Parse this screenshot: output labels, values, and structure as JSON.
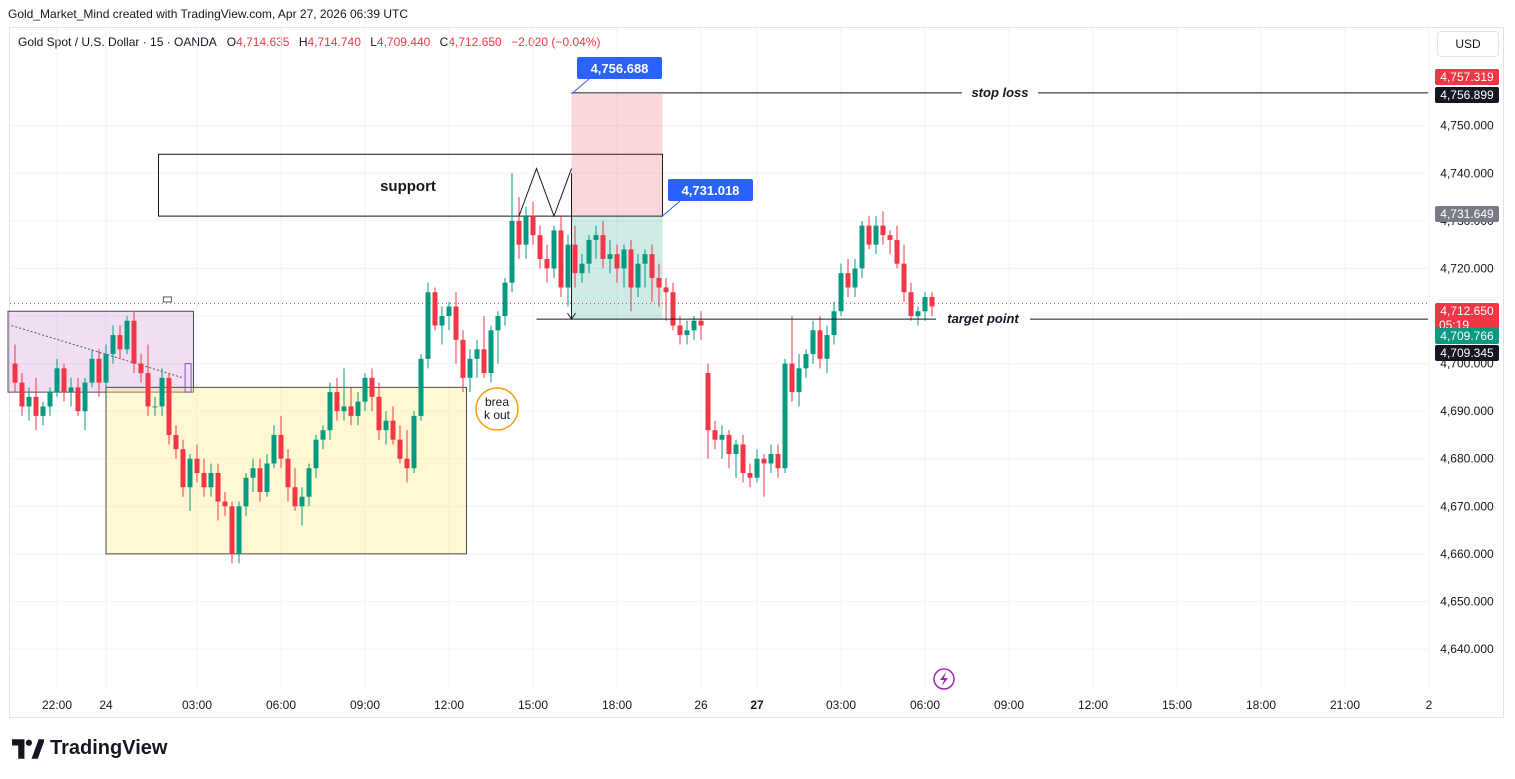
{
  "credit": "Gold_Market_Mind created with TradingView.com, Apr 27, 2026 06:39 UTC",
  "legend": {
    "symbol": "Gold Spot / U.S. Dollar · 15 · OANDA",
    "o_label": "O",
    "o": "4,714.635",
    "h_label": "H",
    "h": "4,714.740",
    "l_label": "L",
    "l": "4,709.440",
    "c_label": "C",
    "c": "4,712.650",
    "change": "−2.020 (−0.04%)"
  },
  "currency": "USD",
  "brand": "TradingView",
  "colors": {
    "up": "#089981",
    "down": "#f23645",
    "accent": "#2962ff"
  },
  "icons": [
    "tradingview-logo-icon",
    "lightning-icon"
  ],
  "chart_data": {
    "type": "candlestick",
    "title": "Gold Spot / U.S. Dollar · 15 · OANDA",
    "ylim": [
      4632,
      4764
    ],
    "y_ticks": [
      4640,
      4650,
      4660,
      4670,
      4680,
      4690,
      4700,
      4710,
      4720,
      4730,
      4740,
      4750
    ],
    "y_tick_labels": [
      "4,640.000",
      "4,650.000",
      "4,660.000",
      "4,670.000",
      "4,680.000",
      "4,690.000",
      "4,700.000",
      "4,710.000",
      "4,720.000",
      "4,730.000",
      "4,740.000",
      "4,750.000"
    ],
    "x_ticks": [
      {
        "bar": 6,
        "label": "22:00",
        "bold": false
      },
      {
        "bar": 13,
        "label": "24",
        "bold": false
      },
      {
        "bar": 26,
        "label": "03:00",
        "bold": false
      },
      {
        "bar": 38,
        "label": "06:00",
        "bold": false
      },
      {
        "bar": 50,
        "label": "09:00",
        "bold": false
      },
      {
        "bar": 62,
        "label": "12:00",
        "bold": false
      },
      {
        "bar": 74,
        "label": "15:00",
        "bold": false
      },
      {
        "bar": 86,
        "label": "18:00",
        "bold": false
      },
      {
        "bar": 98,
        "label": "26",
        "bold": false
      },
      {
        "bar": 106,
        "label": "27",
        "bold": true
      },
      {
        "bar": 118,
        "label": "03:00",
        "bold": false
      },
      {
        "bar": 130,
        "label": "06:00",
        "bold": false
      },
      {
        "bar": 142,
        "label": "09:00",
        "bold": false
      },
      {
        "bar": 154,
        "label": "12:00",
        "bold": false
      },
      {
        "bar": 166,
        "label": "15:00",
        "bold": false
      },
      {
        "bar": 178,
        "label": "18:00",
        "bold": false
      },
      {
        "bar": 190,
        "label": "21:00",
        "bold": false
      },
      {
        "bar": 202,
        "label": "2",
        "bold": false
      }
    ],
    "candles": [
      [
        4700,
        4704,
        4694,
        4696
      ],
      [
        4696,
        4698,
        4689,
        4691
      ],
      [
        4691,
        4695,
        4688,
        4693
      ],
      [
        4693,
        4697,
        4686,
        4689
      ],
      [
        4689,
        4692,
        4687,
        4691
      ],
      [
        4691,
        4695,
        4689,
        4694
      ],
      [
        4694,
        4701,
        4693,
        4699
      ],
      [
        4699,
        4700,
        4692,
        4694
      ],
      [
        4694,
        4697,
        4691,
        4695
      ],
      [
        4695,
        4697,
        4689,
        4690
      ],
      [
        4690,
        4697,
        4686,
        4696
      ],
      [
        4696,
        4703,
        4695,
        4701
      ],
      [
        4701,
        4703,
        4693,
        4696
      ],
      [
        4696,
        4704,
        4695,
        4702
      ],
      [
        4702,
        4708,
        4700,
        4706
      ],
      [
        4706,
        4708,
        4701,
        4703
      ],
      [
        4703,
        4710,
        4702,
        4709
      ],
      [
        4709,
        4711,
        4698,
        4700
      ],
      [
        4700,
        4702,
        4696,
        4698
      ],
      [
        4698,
        4704,
        4689,
        4691
      ],
      [
        4691,
        4693,
        4689,
        4691
      ],
      [
        4691,
        4699,
        4689,
        4697
      ],
      [
        4697,
        4698,
        4683,
        4685
      ],
      [
        4685,
        4687,
        4680,
        4682
      ],
      [
        4682,
        4684,
        4672,
        4674
      ],
      [
        4674,
        4681,
        4669,
        4680
      ],
      [
        4680,
        4683,
        4675,
        4677
      ],
      [
        4677,
        4680,
        4672,
        4674
      ],
      [
        4674,
        4679,
        4672,
        4677
      ],
      [
        4677,
        4679,
        4667,
        4671
      ],
      [
        4671,
        4673,
        4668,
        4670
      ],
      [
        4670,
        4671,
        4658,
        4660
      ],
      [
        4660,
        4671,
        4658,
        4670
      ],
      [
        4670,
        4677,
        4668,
        4676
      ],
      [
        4676,
        4680,
        4673,
        4678
      ],
      [
        4678,
        4680,
        4671,
        4673
      ],
      [
        4673,
        4681,
        4672,
        4679
      ],
      [
        4679,
        4687,
        4678,
        4685
      ],
      [
        4685,
        4689,
        4678,
        4680
      ],
      [
        4680,
        4682,
        4671,
        4674
      ],
      [
        4674,
        4678,
        4669,
        4670
      ],
      [
        4670,
        4674,
        4666,
        4672
      ],
      [
        4672,
        4679,
        4670,
        4678
      ],
      [
        4678,
        4685,
        4676,
        4684
      ],
      [
        4684,
        4687,
        4682,
        4686
      ],
      [
        4686,
        4696,
        4684,
        4694
      ],
      [
        4694,
        4697,
        4688,
        4690
      ],
      [
        4690,
        4699,
        4688,
        4691
      ],
      [
        4691,
        4695,
        4687,
        4689
      ],
      [
        4689,
        4694,
        4687,
        4692
      ],
      [
        4692,
        4698,
        4690,
        4697
      ],
      [
        4697,
        4699,
        4690,
        4693
      ],
      [
        4693,
        4696,
        4684,
        4686
      ],
      [
        4686,
        4690,
        4683,
        4688
      ],
      [
        4688,
        4691,
        4683,
        4684
      ],
      [
        4684,
        4687,
        4679,
        4680
      ],
      [
        4680,
        4686,
        4675,
        4678
      ],
      [
        4678,
        4690,
        4677,
        4689
      ],
      [
        4689,
        4702,
        4688,
        4701
      ],
      [
        4701,
        4717,
        4699,
        4715
      ],
      [
        4715,
        4716,
        4707,
        4708
      ],
      [
        4708,
        4712,
        4704,
        4710
      ],
      [
        4710,
        4713,
        4707,
        4712
      ],
      [
        4712,
        4715,
        4700,
        4705
      ],
      [
        4705,
        4707,
        4694,
        4697
      ],
      [
        4697,
        4703,
        4694,
        4701
      ],
      [
        4701,
        4705,
        4697,
        4703
      ],
      [
        4703,
        4710,
        4697,
        4698
      ],
      [
        4698,
        4708,
        4696,
        4707
      ],
      [
        4707,
        4711,
        4700,
        4710
      ],
      [
        4710,
        4718,
        4708,
        4717
      ],
      [
        4717,
        4740,
        4715,
        4730
      ],
      [
        4730,
        4735,
        4722,
        4725
      ],
      [
        4725,
        4733,
        4722,
        4731
      ],
      [
        4731,
        4734,
        4725,
        4727
      ],
      [
        4727,
        4729,
        4720,
        4722
      ],
      [
        4722,
        4725,
        4717,
        4720
      ],
      [
        4720,
        4729,
        4718,
        4728
      ],
      [
        4728,
        4731,
        4714,
        4716
      ],
      [
        4716,
        4727,
        4712,
        4725
      ],
      [
        4725,
        4729,
        4716,
        4719
      ],
      [
        4719,
        4723,
        4717,
        4721
      ],
      [
        4721,
        4727,
        4719,
        4726
      ],
      [
        4726,
        4729,
        4722,
        4727
      ],
      [
        4727,
        4730,
        4720,
        4722
      ],
      [
        4722,
        4726,
        4719,
        4723
      ],
      [
        4723,
        4725,
        4717,
        4720
      ],
      [
        4720,
        4725,
        4716,
        4724
      ],
      [
        4724,
        4726,
        4711,
        4716
      ],
      [
        4716,
        4723,
        4714,
        4721
      ],
      [
        4721,
        4724,
        4716,
        4723
      ],
      [
        4723,
        4725,
        4713,
        4718
      ],
      [
        4718,
        4721,
        4712,
        4716
      ],
      [
        4716,
        4718,
        4709,
        4715
      ],
      [
        4715,
        4717,
        4707,
        4708
      ],
      [
        4708,
        4710,
        4704,
        4706
      ],
      [
        4706,
        4709,
        4704,
        4707
      ],
      [
        4707,
        4710,
        4705,
        4709
      ],
      [
        4709,
        4711,
        4705,
        4708
      ],
      [
        4698,
        4700,
        4680,
        4686
      ],
      [
        4686,
        4688,
        4682,
        4684
      ],
      [
        4684,
        4687,
        4680,
        4685
      ],
      [
        4685,
        4686,
        4678,
        4681
      ],
      [
        4681,
        4684,
        4676,
        4683
      ],
      [
        4683,
        4685,
        4675,
        4677
      ],
      [
        4677,
        4679,
        4674,
        4676
      ],
      [
        4676,
        4682,
        4675,
        4680
      ],
      [
        4680,
        4681,
        4672,
        4679
      ],
      [
        4679,
        4683,
        4677,
        4681
      ],
      [
        4681,
        4683,
        4676,
        4678
      ],
      [
        4678,
        4701,
        4677,
        4700
      ],
      [
        4700,
        4710,
        4692,
        4694
      ],
      [
        4694,
        4702,
        4691,
        4699
      ],
      [
        4699,
        4703,
        4697,
        4702
      ],
      [
        4702,
        4709,
        4700,
        4707
      ],
      [
        4707,
        4710,
        4699,
        4701
      ],
      [
        4701,
        4708,
        4698,
        4706
      ],
      [
        4706,
        4713,
        4704,
        4711
      ],
      [
        4711,
        4721,
        4710,
        4719
      ],
      [
        4719,
        4722,
        4714,
        4716
      ],
      [
        4716,
        4722,
        4714,
        4720
      ],
      [
        4720,
        4730,
        4718,
        4729
      ],
      [
        4729,
        4731,
        4724,
        4725
      ],
      [
        4725,
        4731,
        4723,
        4729
      ],
      [
        4729,
        4732,
        4725,
        4727
      ],
      [
        4727,
        4728,
        4723,
        4726
      ],
      [
        4726,
        4729,
        4720,
        4721
      ],
      [
        4721,
        4725,
        4713,
        4715
      ],
      [
        4715,
        4717,
        4709,
        4710
      ],
      [
        4710,
        4712,
        4708,
        4711
      ],
      [
        4711,
        4715,
        4709,
        4714
      ],
      [
        4714,
        4715,
        4710,
        4712
      ]
    ],
    "last_price_line": 4712.65,
    "boxes": [
      {
        "name": "purple-zone",
        "bar_from": -1,
        "bar_to": 25.5,
        "y_from": 4694,
        "y_to": 4711
      },
      {
        "name": "yellow-zone",
        "bar_from": 13,
        "bar_to": 64.5,
        "y_from": 4660,
        "y_to": 4695
      },
      {
        "name": "support-box",
        "bar_from": 20.5,
        "bar_to": 92.5,
        "y_from": 4731,
        "y_to": 4744
      },
      {
        "name": "stop-zone",
        "bar_from": 79.5,
        "bar_to": 92.5,
        "y_from": 4731.018,
        "y_to": 4756.688
      },
      {
        "name": "target-zone",
        "bar_from": 79.5,
        "bar_to": 92.5,
        "y_from": 4709.345,
        "y_to": 4731.018
      }
    ],
    "labels": {
      "support": "support",
      "stop_loss": "stop loss",
      "target_point": "target point",
      "breakout_line1": "brea",
      "breakout_line2": "k out",
      "callout_top": "4,756.688",
      "callout_mid": "4,731.018"
    },
    "stop_loss_price": 4756.899,
    "target_price": 4709.345,
    "price_tags": [
      {
        "price": 4757.319,
        "label": "4,757.319",
        "bg": "#f23645"
      },
      {
        "price": 4756.899,
        "label": "4,756.899",
        "bg": "#131722"
      },
      {
        "price": 4731.649,
        "label": "4,731.649",
        "bg": "#787b86"
      },
      {
        "price": 4712.65,
        "label": "4,712.650",
        "label2": "05:19",
        "bg": "#f23645"
      },
      {
        "price": 4709.766,
        "label": "4,709.766",
        "bg": "#089981"
      },
      {
        "price": 4709.345,
        "label": "4,709.345",
        "bg": "#131722"
      }
    ]
  }
}
